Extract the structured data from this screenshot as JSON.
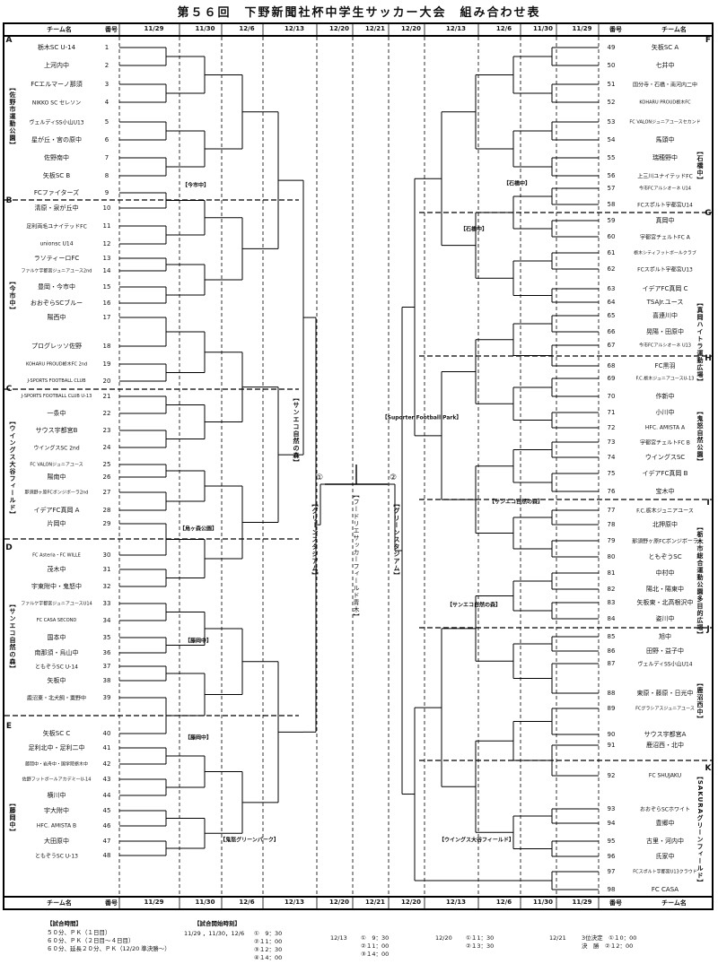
{
  "title": "第５６回　下野新聞社杯中学生サッカー大会　組み合わせ表",
  "header": {
    "team_col": "チーム名",
    "num_col": "番号",
    "dates": [
      "11/29",
      "11/30",
      "12/6",
      "12/13",
      "12/20",
      "12/21",
      "12/20",
      "12/13",
      "12/6",
      "11/30",
      "11/29"
    ]
  },
  "left_teams": [
    {
      "no": "1",
      "name": "栃木SC U-14"
    },
    {
      "no": "2",
      "name": "上河内中"
    },
    {
      "no": "3",
      "name": "FCエルマーノ那須"
    },
    {
      "no": "4",
      "name": "NIKKO SC セレソン"
    },
    {
      "no": "5",
      "name": "ヴェルディSS小山U13"
    },
    {
      "no": "6",
      "name": "星が丘・宮の原中"
    },
    {
      "no": "7",
      "name": "佐野南中"
    },
    {
      "no": "8",
      "name": "矢板SC B"
    },
    {
      "no": "9",
      "name": "FCファイターズ"
    },
    {
      "no": "10",
      "name": "清原・泉が丘中"
    },
    {
      "no": "11",
      "name": "足利両毛ユナイテッドFC"
    },
    {
      "no": "12",
      "name": "unionsc U14"
    },
    {
      "no": "13",
      "name": "ラソティーロFC"
    },
    {
      "no": "14",
      "name": "ファルケ宇都宮ジュニアユース2nd"
    },
    {
      "no": "15",
      "name": "豊岡・今市中"
    },
    {
      "no": "16",
      "name": "おおぞらSCブルー"
    },
    {
      "no": "17",
      "name": "陽西中"
    },
    {
      "no": "18",
      "name": "プログレッソ佐野"
    },
    {
      "no": "19",
      "name": "KOHARU PROUD栃木FC 2nd"
    },
    {
      "no": "20",
      "name": "J-SPORTS FOOTBALL CLUB"
    },
    {
      "no": "21",
      "name": "J-SPORTS FOOTBALL CLUB U-13"
    },
    {
      "no": "22",
      "name": "一条中"
    },
    {
      "no": "23",
      "name": "サウス宇都宮B"
    },
    {
      "no": "24",
      "name": "ウイングスSC 2nd"
    },
    {
      "no": "25",
      "name": "FC VALONジュニアユース"
    },
    {
      "no": "26",
      "name": "陽南中"
    },
    {
      "no": "27",
      "name": "那須野ヶ原FCボンジボーラ2nd"
    },
    {
      "no": "28",
      "name": "イデアFC真岡 A"
    },
    {
      "no": "29",
      "name": "片岡中"
    },
    {
      "no": "30",
      "name": "FC Asteria・FC WILLE"
    },
    {
      "no": "31",
      "name": "茂木中"
    },
    {
      "no": "32",
      "name": "宇東附中・鬼怒中"
    },
    {
      "no": "33",
      "name": "ファルケ宇都宮ジュニアユースU14"
    },
    {
      "no": "34",
      "name": "FC CASA SECOND"
    },
    {
      "no": "35",
      "name": "国本中"
    },
    {
      "no": "36",
      "name": "南那須・烏山中"
    },
    {
      "no": "37",
      "name": "ともぞうSC U-14"
    },
    {
      "no": "38",
      "name": "矢板中"
    },
    {
      "no": "39",
      "name": "鹿沼東・北犬飼・粟野中"
    },
    {
      "no": "40",
      "name": "矢板SC C"
    },
    {
      "no": "41",
      "name": "足利北中・足利二中"
    },
    {
      "no": "42",
      "name": "藤岡中・岩舟中・国学院栃木中"
    },
    {
      "no": "43",
      "name": "佐野フットボールアカデミーU-14"
    },
    {
      "no": "44",
      "name": "横川中"
    },
    {
      "no": "45",
      "name": "宇大附中"
    },
    {
      "no": "46",
      "name": "HFC. AMISTA B"
    },
    {
      "no": "47",
      "name": "大田原中"
    },
    {
      "no": "48",
      "name": "ともぞうSC U-13"
    }
  ],
  "right_teams": [
    {
      "no": "49",
      "name": "矢板SC A"
    },
    {
      "no": "50",
      "name": "七井中"
    },
    {
      "no": "51",
      "name": "国分寺・石橋・南河内二中"
    },
    {
      "no": "52",
      "name": "KOHARU PROUD栃木FC"
    },
    {
      "no": "53",
      "name": "FC VALONジュニアユースセカンド"
    },
    {
      "no": "54",
      "name": "馬頭中"
    },
    {
      "no": "55",
      "name": "瑞穂野中"
    },
    {
      "no": "56",
      "name": "上三川ユナイテッドFC"
    },
    {
      "no": "57",
      "name": "今市FCアルシオーネ U14"
    },
    {
      "no": "58",
      "name": "FCスポルト宇都宮U14"
    },
    {
      "no": "59",
      "name": "真岡中"
    },
    {
      "no": "60",
      "name": "宇都宮チェルトFC A"
    },
    {
      "no": "61",
      "name": "栃木シティフットボールクラブ"
    },
    {
      "no": "62",
      "name": "FCスポルト宇都宮U13"
    },
    {
      "no": "63",
      "name": "イデアFC真岡 C"
    },
    {
      "no": "64",
      "name": "TSAJr.ユース"
    },
    {
      "no": "65",
      "name": "喜連川中"
    },
    {
      "no": "66",
      "name": "晃陽・田原中"
    },
    {
      "no": "67",
      "name": "今市FCアルシオーネ U13"
    },
    {
      "no": "68",
      "name": "FC黒羽"
    },
    {
      "no": "69",
      "name": "F.C.栃木ジュニアユースU-13"
    },
    {
      "no": "70",
      "name": "作新中"
    },
    {
      "no": "71",
      "name": "小川中"
    },
    {
      "no": "72",
      "name": "HFC. AMISTA A"
    },
    {
      "no": "73",
      "name": "宇都宮チェルトFC B"
    },
    {
      "no": "74",
      "name": "ウイングスSC"
    },
    {
      "no": "75",
      "name": "イデアFC真岡 B"
    },
    {
      "no": "76",
      "name": "宝木中"
    },
    {
      "no": "77",
      "name": "F.C.栃木ジュニアユース"
    },
    {
      "no": "78",
      "name": "北押原中"
    },
    {
      "no": "79",
      "name": "那須野ヶ原FCボンジボーラ"
    },
    {
      "no": "80",
      "name": "ともぞうSC"
    },
    {
      "no": "81",
      "name": "中村中"
    },
    {
      "no": "82",
      "name": "陽北・陽東中"
    },
    {
      "no": "83",
      "name": "矢板東・北高根沢中"
    },
    {
      "no": "84",
      "name": "姿川中"
    },
    {
      "no": "85",
      "name": "旭中"
    },
    {
      "no": "86",
      "name": "田野・益子中"
    },
    {
      "no": "87",
      "name": "ヴェルディSS小山U14"
    },
    {
      "no": "88",
      "name": "東原・藤原・日光中"
    },
    {
      "no": "89",
      "name": "FCグラシアスジュニアユース"
    },
    {
      "no": "90",
      "name": "サウス宇都宮A"
    },
    {
      "no": "91",
      "name": "鹿沼西・北中"
    },
    {
      "no": "92",
      "name": "FC SHUJAKU"
    },
    {
      "no": "93",
      "name": "おおぞらSCホワイト"
    },
    {
      "no": "94",
      "name": "豊郷中"
    },
    {
      "no": "95",
      "name": "古里・河内中"
    },
    {
      "no": "96",
      "name": "氏家中"
    },
    {
      "no": "97",
      "name": "FCスポルト宇都宮U13クラウド"
    },
    {
      "no": "98",
      "name": "FC CASA"
    }
  ],
  "groups_left": [
    {
      "letter": "A",
      "first": 1
    },
    {
      "letter": "B",
      "first": 10
    },
    {
      "letter": "C",
      "first": 21
    },
    {
      "letter": "D",
      "first": 30
    },
    {
      "letter": "E",
      "first": 40
    }
  ],
  "groups_right": [
    {
      "letter": "F",
      "first": 49
    },
    {
      "letter": "G",
      "first": 59
    },
    {
      "letter": "H",
      "first": 68
    },
    {
      "letter": "I",
      "first": 77
    },
    {
      "letter": "J",
      "first": 85
    },
    {
      "letter": "K",
      "first": 92
    }
  ],
  "left_venues": [
    "【佐野市運動公園】",
    "【今市中】",
    "【ウイングス大谷フィールド】",
    "【サンエコ自然の森】",
    "【藤岡中】"
  ],
  "right_venues": [
    "【石橋中】",
    "【真岡ハイトラ運動広場】",
    "【鬼怒自然公園】",
    "【栃木市総合運動公園多目的広場】",
    "【鹿沼西中】",
    "【SAKURAグリーンフィールド】"
  ],
  "interior_labels": [
    "【今市中】",
    "【烏ヶ森公園】",
    "【藤岡中】",
    "【藤岡中】",
    "【鬼怒グリーンパーク】",
    "【サンエコ自然の森】",
    "【石橋中】",
    "【石橋中】",
    "【サンエコ自然の森】",
    "【サンエコ自然の森】",
    "【ウイングス大谷フィールド】",
    "【Suporter Football Park】"
  ],
  "center": {
    "semi_left_venue": "【グリーンスタジアム】",
    "semi_right_venue": "【グリーンスタジアム】",
    "final_venue": "【フードリエサッカーフィールド青木】",
    "final_marks": [
      "①",
      "②"
    ]
  },
  "footer": {
    "time_header": "【試合時間】",
    "time_lines": [
      "５０分、ＰＫ（１日目）",
      "６０分、ＰＫ（２日目～４日目）",
      "６０分、延長２０分、ＰＫ（12/20 準決勝～）"
    ],
    "start_header": "【試合開始時刻】",
    "schedule": [
      {
        "dates": "11/29 ，11/30，12/6",
        "times": [
          "①　9：30",
          "②１1：00",
          "③１2：30",
          "④１4：00"
        ]
      },
      {
        "dates": "12/13",
        "times": [
          "①　9：30",
          "②１1：00",
          "③１4：00"
        ]
      },
      {
        "dates": "12/20",
        "times": [
          "①１1：30",
          "②１3：30"
        ]
      },
      {
        "dates": "12/21",
        "times": [
          "3位決定　①１0：00",
          "決　勝　②１2：00"
        ]
      }
    ]
  }
}
